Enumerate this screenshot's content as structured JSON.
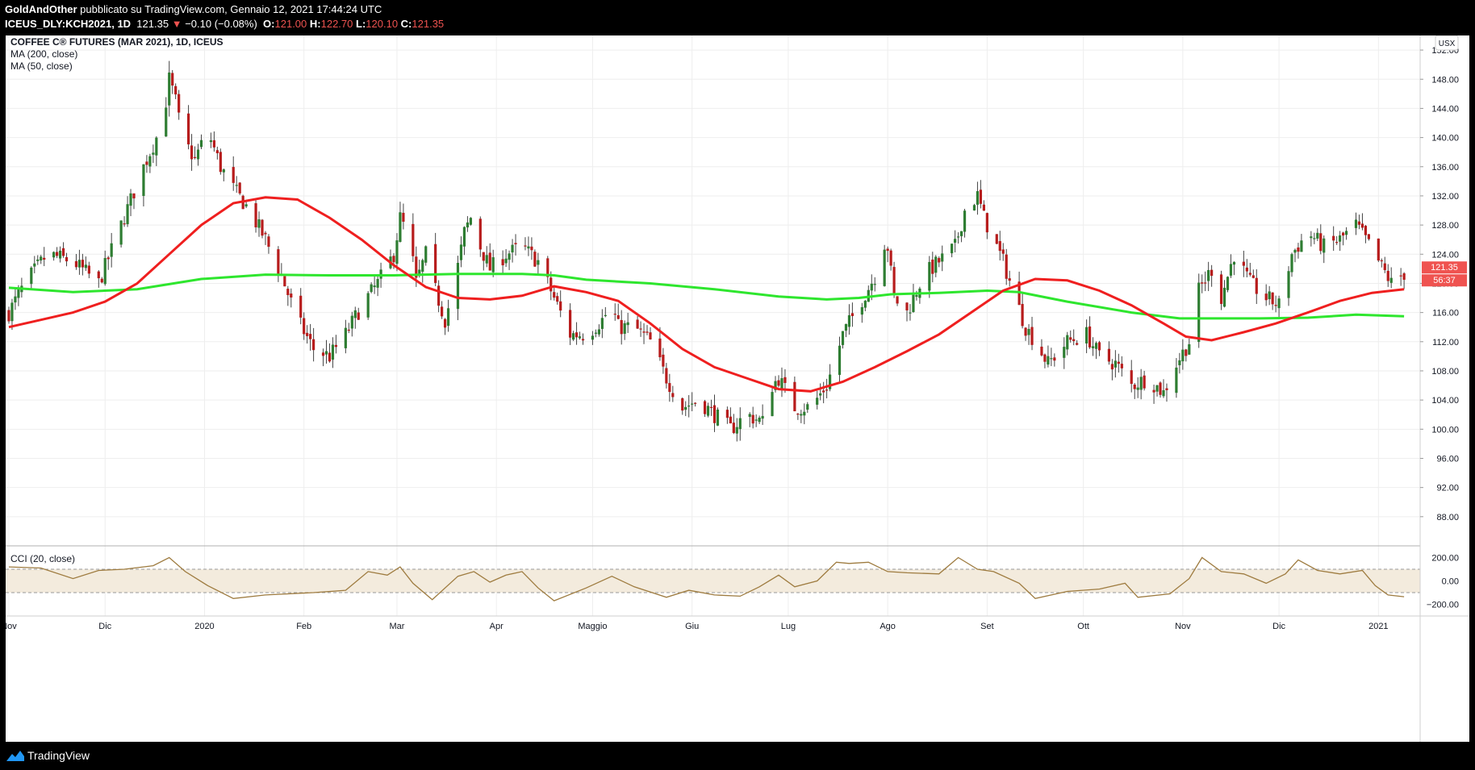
{
  "header": {
    "author": "GoldAndOther",
    "published": "pubblicato su TradingView.com, Gennaio 12, 2021 17:44:24 UTC",
    "symbol": "ICEUS_DLY:KCH2021, 1D",
    "last": "121.35",
    "change_arrow": "▼",
    "change": "−0.10 (−0.08%)",
    "o_label": "O:",
    "o_value": "121.00",
    "h_label": "H:",
    "h_value": "122.70",
    "l_label": "L:",
    "l_value": "120.10",
    "c_label": "C:",
    "c_value": "121.35"
  },
  "legend": {
    "title": "COFFEE C® FUTURES (MAR 2021), 1D, ICEUS",
    "ma200": "MA (200, close)",
    "ma50": "MA (50, close)",
    "cci": "CCI (20, close)"
  },
  "currency": "USX",
  "price_tag": "121.35",
  "countdown_tag": "56:37",
  "footer": {
    "brand": "TradingView"
  },
  "colors": {
    "up": "#26a69a",
    "down": "#ef5350",
    "up_candle": "#2e7d32",
    "down_candle": "#b71c1c",
    "ma50": "#ef1f1f",
    "ma200": "#2ee62e",
    "cci": "#9e7b3f",
    "cci_band": "#f3ebdd",
    "grid": "#eeeeee"
  },
  "chart_data": [
    {
      "type": "candlestick",
      "title": "COFFEE C® FUTURES (MAR 2021), 1D, ICEUS",
      "ylabel": "USX",
      "ylim": [
        84,
        154
      ],
      "yticks": [
        88,
        92,
        96,
        100,
        104,
        108,
        112,
        116,
        120,
        124,
        128,
        132,
        136,
        140,
        144,
        148,
        152
      ],
      "ytick_labels": [
        "88.00",
        "92.00",
        "96.00",
        "100.00",
        "104.00",
        "108.00",
        "112.00",
        "116.00",
        "120.00",
        "124.00",
        "128.00",
        "132.00",
        "136.00",
        "140.00",
        "144.00",
        "148.00",
        "152.00"
      ],
      "x_labels": [
        "Nov",
        "Dic",
        "2020",
        "Feb",
        "Mar",
        "Apr",
        "Maggio",
        "Giu",
        "Lug",
        "Ago",
        "Set",
        "Ott",
        "Nov",
        "Dic",
        "2021"
      ],
      "x_ticks_day": [
        0,
        30,
        61,
        92,
        121,
        152,
        182,
        213,
        243,
        274,
        305,
        335,
        366,
        396,
        427
      ],
      "last_day": 435,
      "close_path": [
        [
          0,
          116
        ],
        [
          5,
          120
        ],
        [
          12,
          124
        ],
        [
          20,
          123
        ],
        [
          28,
          120
        ],
        [
          35,
          128
        ],
        [
          42,
          136
        ],
        [
          48,
          142
        ],
        [
          50,
          148
        ],
        [
          52,
          145
        ],
        [
          54,
          140
        ],
        [
          58,
          137
        ],
        [
          62,
          141
        ],
        [
          66,
          136
        ],
        [
          70,
          133
        ],
        [
          75,
          130
        ],
        [
          80,
          126
        ],
        [
          85,
          121
        ],
        [
          90,
          115
        ],
        [
          95,
          111
        ],
        [
          100,
          110
        ],
        [
          105,
          113
        ],
        [
          110,
          117
        ],
        [
          115,
          120
        ],
        [
          120,
          124
        ],
        [
          122,
          129
        ],
        [
          125,
          126
        ],
        [
          127,
          120
        ],
        [
          130,
          124
        ],
        [
          133,
          119
        ],
        [
          136,
          115
        ],
        [
          139,
          120
        ],
        [
          142,
          127
        ],
        [
          144,
          129
        ],
        [
          147,
          125
        ],
        [
          150,
          122
        ],
        [
          155,
          124
        ],
        [
          160,
          125
        ],
        [
          165,
          123
        ],
        [
          170,
          118
        ],
        [
          175,
          113
        ],
        [
          180,
          113
        ],
        [
          185,
          115
        ],
        [
          188,
          117
        ],
        [
          190,
          114
        ],
        [
          195,
          114
        ],
        [
          200,
          112
        ],
        [
          205,
          107
        ],
        [
          210,
          103
        ],
        [
          215,
          104
        ],
        [
          220,
          102
        ],
        [
          225,
          100
        ],
        [
          230,
          102
        ],
        [
          235,
          101
        ],
        [
          238,
          106
        ],
        [
          240,
          107
        ],
        [
          245,
          103
        ],
        [
          250,
          103
        ],
        [
          255,
          106
        ],
        [
          258,
          110
        ],
        [
          260,
          113
        ],
        [
          265,
          117
        ],
        [
          270,
          121
        ],
        [
          272,
          126
        ],
        [
          274,
          125
        ],
        [
          276,
          118
        ],
        [
          280,
          116
        ],
        [
          285,
          121
        ],
        [
          290,
          123
        ],
        [
          295,
          125
        ],
        [
          298,
          130
        ],
        [
          302,
          132
        ],
        [
          304,
          129
        ],
        [
          307,
          126
        ],
        [
          310,
          123
        ],
        [
          313,
          119
        ],
        [
          317,
          114
        ],
        [
          320,
          112
        ],
        [
          324,
          109
        ],
        [
          330,
          112
        ],
        [
          336,
          113
        ],
        [
          340,
          110
        ],
        [
          345,
          109
        ],
        [
          350,
          106
        ],
        [
          355,
          107
        ],
        [
          360,
          105
        ],
        [
          364,
          109
        ],
        [
          368,
          112
        ],
        [
          371,
          119
        ],
        [
          375,
          122
        ],
        [
          378,
          118
        ],
        [
          382,
          124
        ],
        [
          387,
          120
        ],
        [
          392,
          118
        ],
        [
          396,
          117
        ],
        [
          400,
          124
        ],
        [
          405,
          127
        ],
        [
          410,
          125
        ],
        [
          415,
          126
        ],
        [
          420,
          128
        ],
        [
          423,
          126
        ],
        [
          427,
          123
        ],
        [
          431,
          120
        ],
        [
          435,
          121.35
        ]
      ],
      "ma50": [
        [
          0,
          114
        ],
        [
          10,
          115
        ],
        [
          20,
          116
        ],
        [
          30,
          117.5
        ],
        [
          40,
          120
        ],
        [
          50,
          124
        ],
        [
          60,
          128
        ],
        [
          70,
          131
        ],
        [
          80,
          131.8
        ],
        [
          90,
          131.5
        ],
        [
          100,
          129
        ],
        [
          110,
          126
        ],
        [
          120,
          122.5
        ],
        [
          130,
          119.5
        ],
        [
          140,
          118
        ],
        [
          150,
          117.8
        ],
        [
          160,
          118.3
        ],
        [
          170,
          119.6
        ],
        [
          180,
          118.8
        ],
        [
          190,
          117.6
        ],
        [
          200,
          114.5
        ],
        [
          210,
          111
        ],
        [
          220,
          108.5
        ],
        [
          230,
          107
        ],
        [
          240,
          105.5
        ],
        [
          250,
          105.2
        ],
        [
          260,
          106.5
        ],
        [
          270,
          108.5
        ],
        [
          280,
          110.7
        ],
        [
          290,
          113
        ],
        [
          300,
          116
        ],
        [
          310,
          119
        ],
        [
          320,
          120.6
        ],
        [
          330,
          120.4
        ],
        [
          340,
          119
        ],
        [
          350,
          117
        ],
        [
          360,
          114.5
        ],
        [
          367,
          112.7
        ],
        [
          375,
          112.2
        ],
        [
          385,
          113.3
        ],
        [
          395,
          114.5
        ],
        [
          405,
          116
        ],
        [
          415,
          117.6
        ],
        [
          425,
          118.7
        ],
        [
          435,
          119.2
        ]
      ],
      "ma200": [
        [
          0,
          119.4
        ],
        [
          20,
          118.8
        ],
        [
          40,
          119.2
        ],
        [
          60,
          120.6
        ],
        [
          80,
          121.2
        ],
        [
          100,
          121.1
        ],
        [
          120,
          121.1
        ],
        [
          140,
          121.3
        ],
        [
          160,
          121.3
        ],
        [
          170,
          121.1
        ],
        [
          180,
          120.5
        ],
        [
          200,
          120
        ],
        [
          220,
          119.2
        ],
        [
          240,
          118.2
        ],
        [
          255,
          117.8
        ],
        [
          265,
          118
        ],
        [
          275,
          118.5
        ],
        [
          290,
          118.7
        ],
        [
          305,
          119
        ],
        [
          315,
          118.8
        ],
        [
          330,
          117.5
        ],
        [
          350,
          116
        ],
        [
          365,
          115.2
        ],
        [
          375,
          115.2
        ],
        [
          390,
          115.2
        ],
        [
          405,
          115.3
        ],
        [
          420,
          115.7
        ],
        [
          435,
          115.5
        ]
      ]
    },
    {
      "type": "line",
      "name": "CCI (20, close)",
      "ylim": [
        -300,
        300
      ],
      "yticks": [
        200,
        0,
        -200
      ],
      "ytick_labels": [
        "200.00",
        "0.00",
        "−200.00"
      ],
      "band": [
        -100,
        100
      ],
      "cci": [
        [
          0,
          120
        ],
        [
          10,
          110
        ],
        [
          20,
          20
        ],
        [
          28,
          90
        ],
        [
          36,
          100
        ],
        [
          45,
          130
        ],
        [
          50,
          200
        ],
        [
          55,
          80
        ],
        [
          62,
          -40
        ],
        [
          70,
          -150
        ],
        [
          80,
          -120
        ],
        [
          95,
          -100
        ],
        [
          105,
          -80
        ],
        [
          112,
          80
        ],
        [
          118,
          50
        ],
        [
          122,
          120
        ],
        [
          126,
          -20
        ],
        [
          132,
          -160
        ],
        [
          140,
          40
        ],
        [
          145,
          80
        ],
        [
          150,
          -10
        ],
        [
          155,
          50
        ],
        [
          160,
          80
        ],
        [
          165,
          -60
        ],
        [
          170,
          -170
        ],
        [
          180,
          -60
        ],
        [
          188,
          40
        ],
        [
          195,
          -50
        ],
        [
          205,
          -140
        ],
        [
          212,
          -80
        ],
        [
          220,
          -120
        ],
        [
          228,
          -130
        ],
        [
          234,
          -50
        ],
        [
          240,
          50
        ],
        [
          245,
          -50
        ],
        [
          252,
          0
        ],
        [
          258,
          160
        ],
        [
          262,
          150
        ],
        [
          268,
          160
        ],
        [
          274,
          80
        ],
        [
          280,
          70
        ],
        [
          290,
          60
        ],
        [
          296,
          200
        ],
        [
          302,
          100
        ],
        [
          307,
          80
        ],
        [
          315,
          -20
        ],
        [
          320,
          -150
        ],
        [
          330,
          -90
        ],
        [
          340,
          -70
        ],
        [
          348,
          -20
        ],
        [
          352,
          -140
        ],
        [
          362,
          -110
        ],
        [
          368,
          20
        ],
        [
          372,
          200
        ],
        [
          378,
          80
        ],
        [
          385,
          60
        ],
        [
          392,
          -20
        ],
        [
          398,
          60
        ],
        [
          402,
          180
        ],
        [
          408,
          90
        ],
        [
          415,
          60
        ],
        [
          422,
          90
        ],
        [
          426,
          -40
        ],
        [
          430,
          -120
        ],
        [
          435,
          -135
        ]
      ]
    }
  ]
}
